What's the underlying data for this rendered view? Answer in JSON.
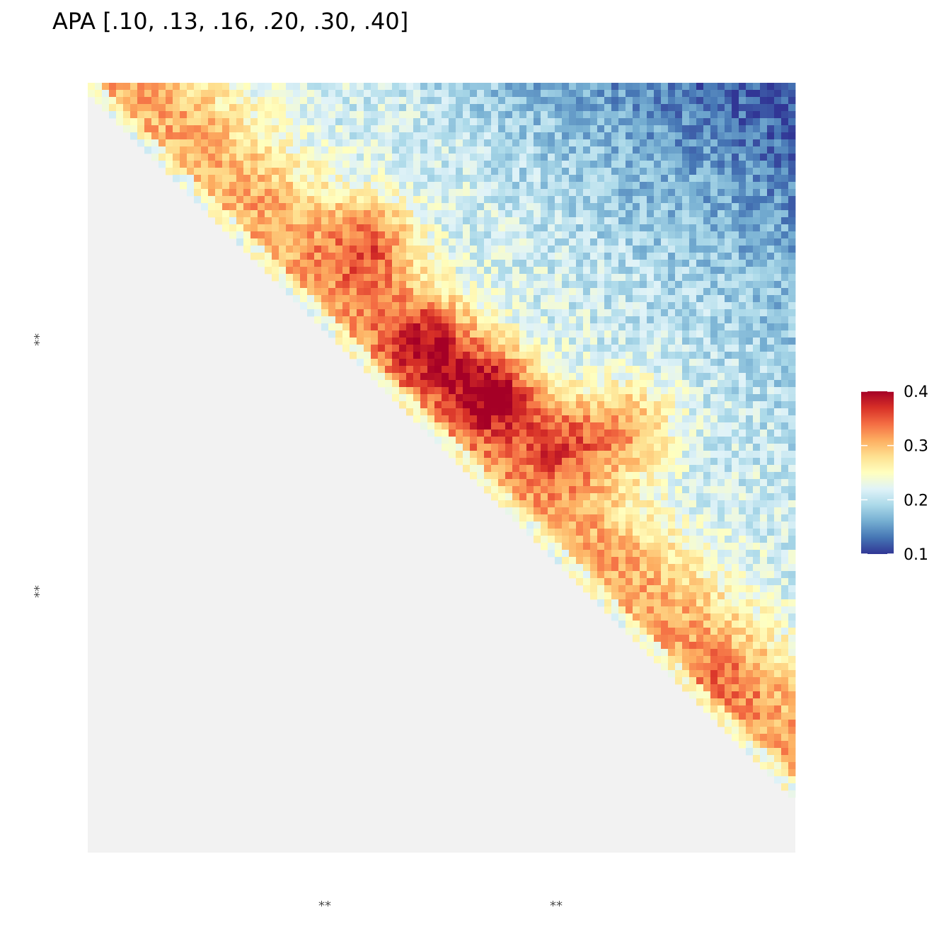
{
  "chart_data": {
    "type": "heatmap",
    "title": "APA [.10, .13, .16, .20, .30, .40]",
    "xlabel": "",
    "ylabel": "",
    "x_tick_labels": [
      "**",
      "**"
    ],
    "y_tick_labels": [
      "**",
      "**"
    ],
    "grid_size": 100,
    "masked_region": "lower-left triangle (below diagonal), light grey",
    "colorbar": {
      "range": [
        0.1,
        0.4
      ],
      "ticks": [
        0.1,
        0.2,
        0.3,
        0.4
      ],
      "tick_labels": [
        "0.1",
        "0.2",
        "0.3",
        "0.4"
      ],
      "palette": [
        "#313695",
        "#4575b4",
        "#74add1",
        "#abd9e9",
        "#e0f3f8",
        "#ffffbf",
        "#fee090",
        "#fdae61",
        "#f46d43",
        "#d73027",
        "#a50026"
      ],
      "breaks": [
        0.1,
        0.13,
        0.16,
        0.2,
        0.3,
        0.4
      ]
    },
    "hotspots": [
      {
        "row": 22,
        "col": 40,
        "value": 0.37
      },
      {
        "row": 36,
        "col": 48,
        "value": 0.38
      },
      {
        "row": 43,
        "col": 57,
        "value": 0.4
      },
      {
        "row": 48,
        "col": 76,
        "value": 0.37
      },
      {
        "row": 50,
        "col": 67,
        "value": 0.36
      },
      {
        "row": 85,
        "col": 89,
        "value": 0.31
      }
    ],
    "upper_right_value": 0.17,
    "legend_placement": "right"
  },
  "colors": {
    "masked": "#f2f2f2",
    "background": "#ffffff"
  }
}
